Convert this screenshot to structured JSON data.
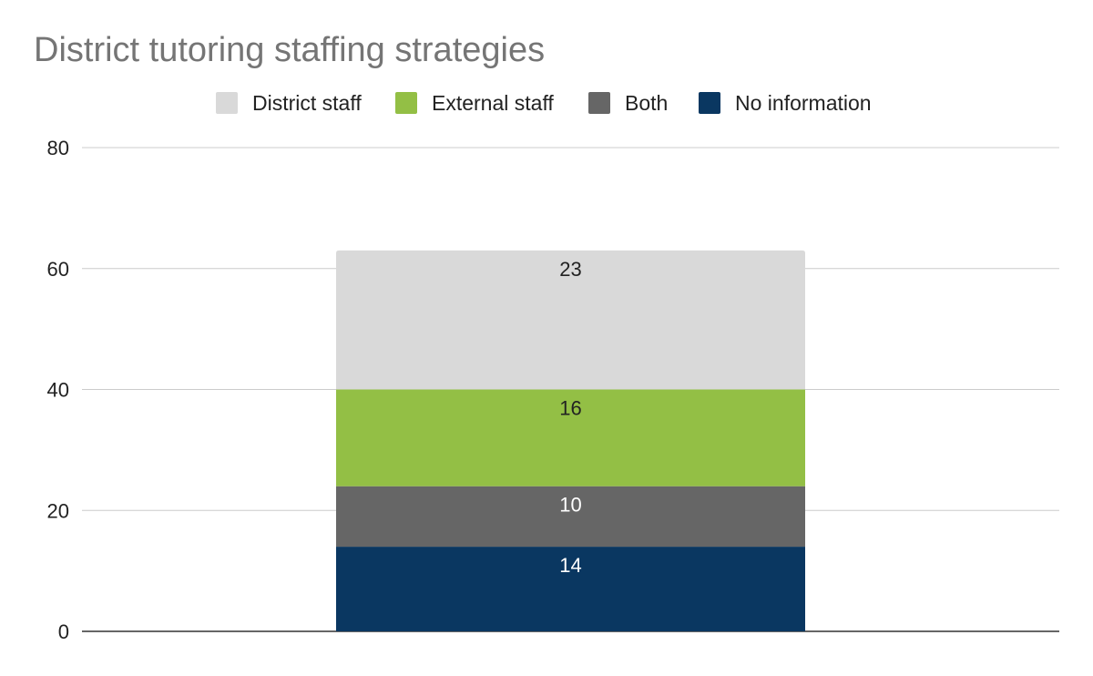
{
  "chart_data": {
    "type": "bar",
    "stacked": true,
    "title": "District tutoring staffing strategies",
    "categories": [
      ""
    ],
    "series": [
      {
        "name": "District staff",
        "values": [
          23
        ],
        "color": "#d9d9d9",
        "label_color": "#222222"
      },
      {
        "name": "External staff",
        "values": [
          16
        ],
        "color": "#93bf45",
        "label_color": "#222222"
      },
      {
        "name": "Both",
        "values": [
          10
        ],
        "color": "#666666",
        "label_color": "#ffffff"
      },
      {
        "name": "No information",
        "values": [
          14
        ],
        "color": "#0a3761",
        "label_color": "#ffffff"
      }
    ],
    "stack_order_bottom_to_top": [
      "No information",
      "Both",
      "External staff",
      "District staff"
    ],
    "ylim": [
      0,
      80
    ],
    "yticks": [
      0,
      20,
      40,
      60,
      80
    ],
    "grid": true,
    "legend_position": "top"
  }
}
